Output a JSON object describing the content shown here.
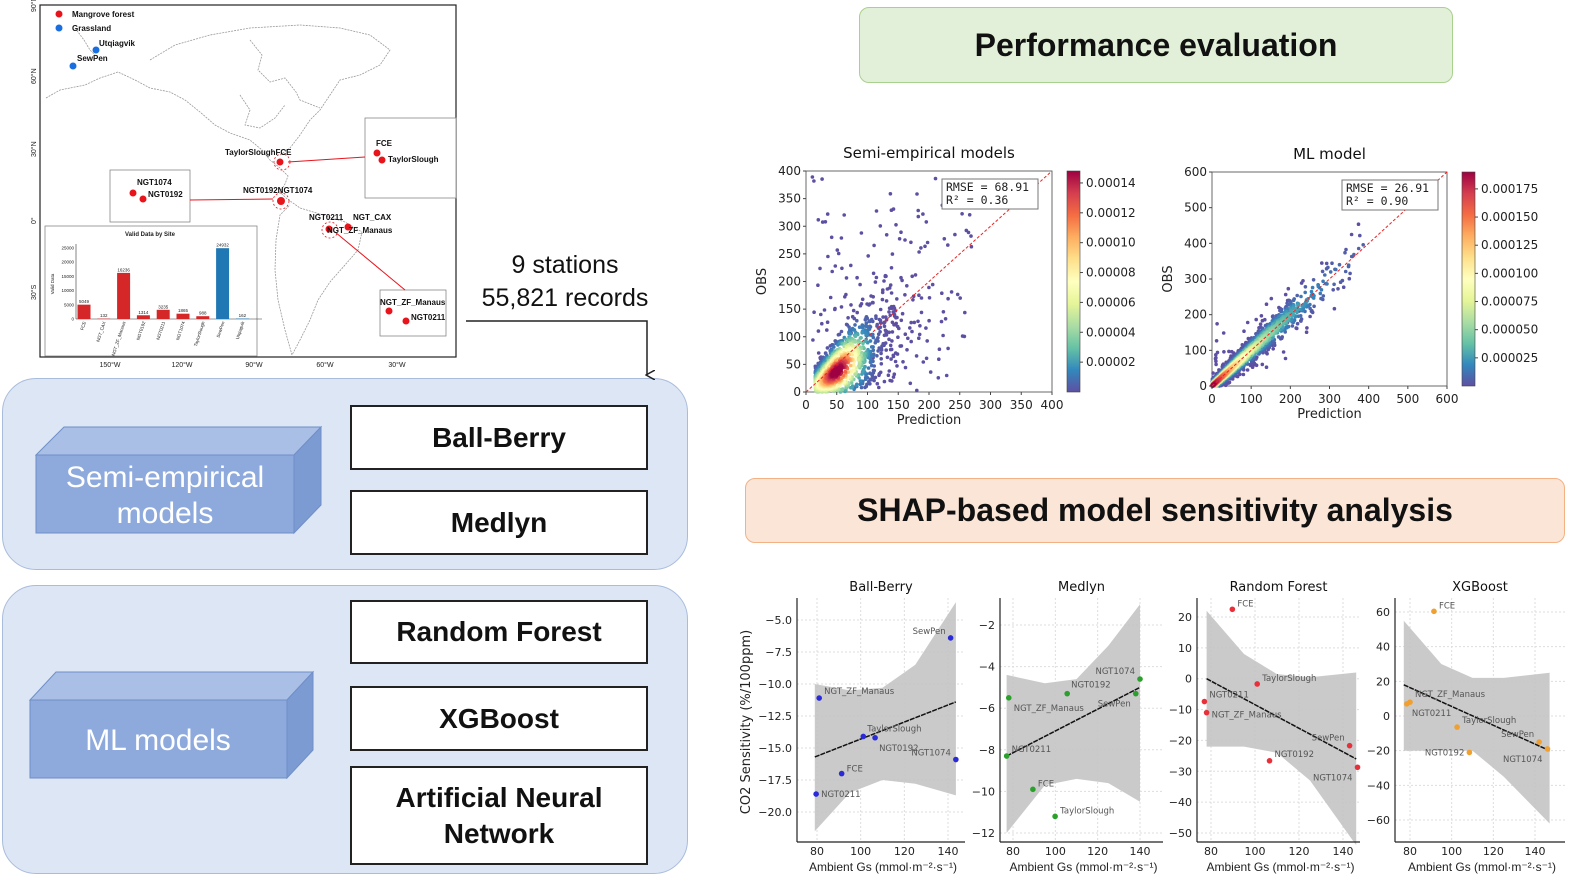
{
  "map": {
    "legend": [
      {
        "label": "Mangrove forest",
        "color": "#e8141c"
      },
      {
        "label": "Grassland",
        "color": "#1a6fe0"
      }
    ],
    "lat_labels": [
      "90°N",
      "60°N",
      "30°N",
      "0°",
      "30°S"
    ],
    "lon_labels": [
      "150°W",
      "120°W",
      "90°W",
      "60°W",
      "30°W"
    ],
    "labels": [
      "Utqiagvik",
      "SewPen",
      "TaylorSloughFCE",
      "FCE",
      "TaylorSlough",
      "NGT1074",
      "NGT0192",
      "NGT0192NGT1074",
      "NGT0211",
      "NGT_CAX",
      "NGT_ZF_Manaus",
      "NGT_ZF_Manaus",
      "NGT0211"
    ]
  },
  "summary": {
    "stations": "9 stations",
    "records": "55,821 records"
  },
  "groups": {
    "semi": {
      "label_line1": "Semi-empirical",
      "label_line2": "models",
      "models": [
        "Ball-Berry",
        "Medlyn"
      ]
    },
    "ml": {
      "label": "ML models",
      "models": [
        "Random Forest",
        "XGBoost",
        "Artificial Neural",
        "Network"
      ]
    }
  },
  "performance": {
    "title": "Performance evaluation"
  },
  "shap": {
    "title": "SHAP-based model sensitivity analysis",
    "ylabel": "CO2 Sensitivity (%/100ppm)",
    "xlabel": "Ambient Gs (mmol·m⁻²·s⁻¹)"
  },
  "colors": {
    "mangrove": "#e8141c",
    "grassland": "#1a6fe0",
    "blue_panel": "#dde6f4",
    "box_face": "#8eaadc",
    "perf_bg": "#e2f0d9",
    "perf_border": "#a9d18e",
    "shap_bg": "#fbe5d6",
    "shap_border": "#f4b183"
  },
  "chart_data": [
    {
      "id": "valid-data",
      "type": "bar",
      "title": "Valid Data by Site",
      "ylabel": "Valid Data",
      "categories": [
        "FCE",
        "NGT_CAX",
        "NGT_ZF_Manaus",
        "NGT0192",
        "NGT0211",
        "NGT1074",
        "TaylorSlough",
        "SewPen",
        "Utqiagvik"
      ],
      "values": [
        5049,
        132,
        16236,
        1314,
        3235,
        1865,
        988,
        24932,
        162
      ],
      "colors": [
        "#d62728",
        "#d62728",
        "#d62728",
        "#d62728",
        "#d62728",
        "#d62728",
        "#d62728",
        "#1f77b4",
        "#1f77b4"
      ],
      "y_ticks": [
        0,
        5000,
        10000,
        15000,
        20000,
        25000
      ],
      "ylim": [
        0,
        25000
      ]
    },
    {
      "id": "semi-scatter",
      "type": "scatter",
      "title": "Semi-empirical  models",
      "xlabel": "Prediction",
      "ylabel": "OBS",
      "xlim": [
        0,
        400
      ],
      "ylim": [
        0,
        400
      ],
      "ticks": [
        0,
        50,
        100,
        150,
        200,
        250,
        300,
        350,
        400
      ],
      "stats": [
        "RMSE = 68.91",
        "R²   =  0.36"
      ],
      "colorbar_ticks": [
        "0.00002",
        "0.00004",
        "0.00006",
        "0.00008",
        "0.00010",
        "0.00012",
        "0.00014"
      ],
      "colorbar_max": 0.000148,
      "colormap": "Spectral_r"
    },
    {
      "id": "ml-scatter",
      "type": "scatter",
      "title": "ML model",
      "xlabel": "Prediction",
      "ylabel": "OBS",
      "xlim": [
        0,
        600
      ],
      "ylim": [
        0,
        600
      ],
      "ticks": [
        0,
        100,
        200,
        300,
        400,
        500,
        600
      ],
      "stats": [
        "RMSE = 26.91",
        "R²   =  0.90"
      ],
      "colorbar_ticks": [
        "0.000025",
        "0.000050",
        "0.000075",
        "0.000100",
        "0.000125",
        "0.000150",
        "0.000175"
      ],
      "colorbar_max": 0.00019,
      "colormap": "Spectral_r"
    },
    {
      "id": "shap-ballberry",
      "type": "scatter",
      "title": "Ball-Berry",
      "color": "#2a2ad8",
      "x_ticks": [
        80,
        100,
        120,
        140
      ],
      "y_ticks": [
        -5.0,
        -7.5,
        -10.0,
        -12.5,
        -15.0,
        -17.5,
        -20.0
      ],
      "y_decimals": 1,
      "points": [
        {
          "label": "SewPen",
          "x": 141.2,
          "y": -6.4
        },
        {
          "label": "NGT_ZF_Manaus",
          "x": 81,
          "y": -11.1
        },
        {
          "label": "TaylorSlough",
          "x": 101.2,
          "y": -14.1
        },
        {
          "label": "NGT0192",
          "x": 106.6,
          "y": -14.2
        },
        {
          "label": "NGT1074",
          "x": 143.6,
          "y": -15.9
        },
        {
          "label": "FCE",
          "x": 91.3,
          "y": -17.0
        },
        {
          "label": "NGT0211",
          "x": 79.6,
          "y": -18.6
        }
      ],
      "fit": [
        [
          79,
          -15.7
        ],
        [
          143.6,
          -11.4
        ]
      ],
      "band_upper": [
        [
          79,
          -10
        ],
        [
          95,
          -10.5
        ],
        [
          110,
          -10.3
        ],
        [
          125,
          -8.5
        ],
        [
          143.6,
          -3.6
        ]
      ],
      "band_lower": [
        [
          79,
          -21.5
        ],
        [
          95,
          -18.5
        ],
        [
          110,
          -17.5
        ],
        [
          125,
          -17.8
        ],
        [
          143.6,
          -18.7
        ]
      ]
    },
    {
      "id": "shap-medlyn",
      "type": "scatter",
      "title": "Medlyn",
      "color": "#2ca02c",
      "x_ticks": [
        80,
        100,
        120,
        140
      ],
      "y_ticks": [
        -2,
        -4,
        -6,
        -8,
        -10,
        -12
      ],
      "y_decimals": 0,
      "points": [
        {
          "label": "NGT_ZF_Manaus",
          "x": 78,
          "y": -5.5
        },
        {
          "label": "NGT0192",
          "x": 105.6,
          "y": -5.3
        },
        {
          "label": "NGT1074",
          "x": 140,
          "y": -4.6
        },
        {
          "label": "SewPen",
          "x": 138,
          "y": -5.3
        },
        {
          "label": "NGT0211",
          "x": 77,
          "y": -8.3
        },
        {
          "label": "FCE",
          "x": 89.4,
          "y": -9.9
        },
        {
          "label": "TaylorSlough",
          "x": 99.9,
          "y": -11.2
        }
      ],
      "fit": [
        [
          77,
          -8.3
        ],
        [
          140,
          -5.0
        ]
      ],
      "band_upper": [
        [
          77,
          -4.4
        ],
        [
          95,
          -4.8
        ],
        [
          110,
          -4.6
        ],
        [
          125,
          -3.0
        ],
        [
          140,
          -1.0
        ]
      ],
      "band_lower": [
        [
          77,
          -12
        ],
        [
          95,
          -9.7
        ],
        [
          110,
          -9.4
        ],
        [
          125,
          -9.6
        ],
        [
          140,
          -10.5
        ]
      ]
    },
    {
      "id": "shap-rf",
      "type": "scatter",
      "title": "Random Forest",
      "color": "#e8303a",
      "x_ticks": [
        80,
        100,
        120,
        140
      ],
      "y_ticks": [
        20,
        10,
        0,
        -10,
        -20,
        -30,
        -40,
        -50
      ],
      "y_decimals": 0,
      "points": [
        {
          "label": "FCE",
          "x": 89.7,
          "y": 22.5
        },
        {
          "label": "TaylorSlough",
          "x": 101,
          "y": -1.7
        },
        {
          "label": "NGT0211",
          "x": 77,
          "y": -7.4
        },
        {
          "label": "NGT_ZF_Manaus",
          "x": 78,
          "y": -11
        },
        {
          "label": "NGT0192",
          "x": 106.6,
          "y": -26.6
        },
        {
          "label": "SewPen",
          "x": 143,
          "y": -21.7
        },
        {
          "label": "NGT1074",
          "x": 146.6,
          "y": -28.7
        }
      ],
      "fit": [
        [
          78,
          0
        ],
        [
          146,
          -26
        ]
      ],
      "band_upper": [
        [
          78,
          22
        ],
        [
          95,
          8
        ],
        [
          110,
          1.5
        ],
        [
          125,
          0.5
        ],
        [
          146,
          2
        ]
      ],
      "band_lower": [
        [
          78,
          -22
        ],
        [
          95,
          -22
        ],
        [
          110,
          -24
        ],
        [
          125,
          -33
        ],
        [
          146,
          -54
        ]
      ]
    },
    {
      "id": "shap-xgb",
      "type": "scatter",
      "title": "XGBoost",
      "color": "#f0a030",
      "x_ticks": [
        80,
        100,
        120,
        140
      ],
      "y_ticks": [
        60,
        40,
        20,
        0,
        -20,
        -40,
        -60
      ],
      "y_decimals": 0,
      "points": [
        {
          "label": "FCE",
          "x": 91.5,
          "y": 60.4
        },
        {
          "label": "NGT_ZF_Manaus",
          "x": 80,
          "y": 8
        },
        {
          "label": "NGT0211",
          "x": 78.5,
          "y": 7
        },
        {
          "label": "TaylorSlough",
          "x": 102.6,
          "y": -6.4
        },
        {
          "label": "NGT0192",
          "x": 108.5,
          "y": -21
        },
        {
          "label": "SewPen",
          "x": 142,
          "y": -15
        },
        {
          "label": "NGT1074",
          "x": 146,
          "y": -19
        }
      ],
      "fit": [
        [
          77,
          18
        ],
        [
          147,
          -20
        ]
      ],
      "band_upper": [
        [
          77,
          55
        ],
        [
          95,
          30
        ],
        [
          110,
          22
        ],
        [
          125,
          22
        ],
        [
          147,
          25
        ]
      ],
      "band_lower": [
        [
          77,
          -20
        ],
        [
          95,
          -20
        ],
        [
          110,
          -20
        ],
        [
          125,
          -35
        ],
        [
          147,
          -62
        ]
      ]
    }
  ]
}
